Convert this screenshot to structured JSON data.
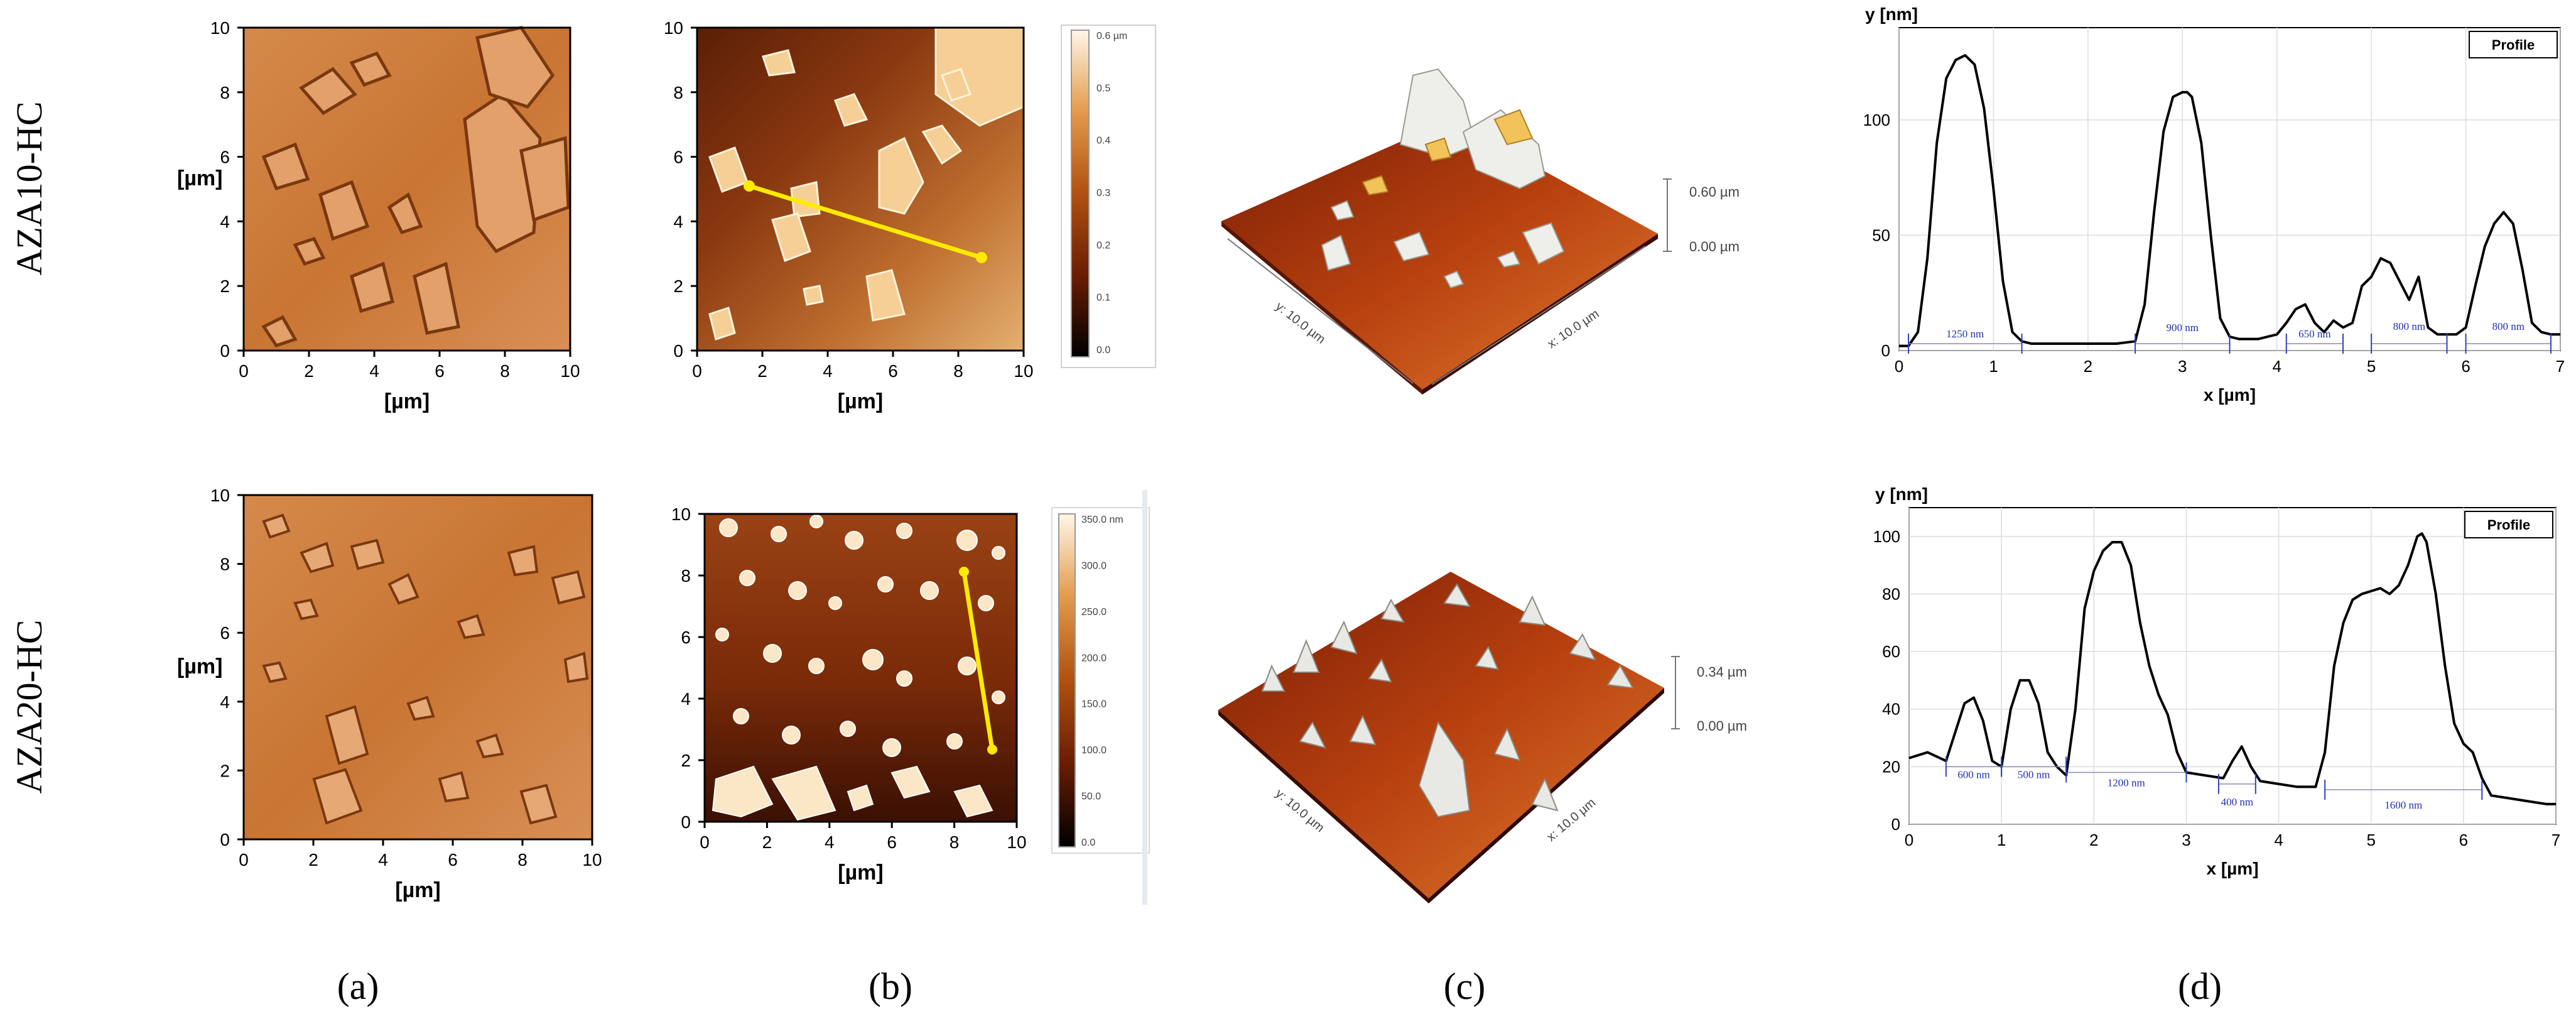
{
  "rows": [
    {
      "sample": "AZA10-HC"
    },
    {
      "sample": "AZA20-HC"
    }
  ],
  "panel_labels": [
    "(a)",
    "(b)",
    "(c)",
    "(d)"
  ],
  "axis_unit": "[µm]",
  "ticks_0_10": [
    "0",
    "2",
    "4",
    "6",
    "8",
    "10"
  ],
  "colorbar_row1": [
    "0.6 µm",
    "0.5",
    "0.4",
    "0.3",
    "0.2",
    "0.1",
    "0.0"
  ],
  "colorbar_row2": [
    "350.0 nm",
    "300.0",
    "250.0",
    "200.0",
    "150.0",
    "100.0",
    "50.0",
    "0.0"
  ],
  "view3d": [
    {
      "top": "0.60 µm",
      "bottom": "0.00 µm",
      "y_label": "y: 10.0 µm",
      "x_label": "x: 10.0 µm"
    },
    {
      "top": "0.34 µm",
      "bottom": "0.00 µm",
      "y_label": "y: 10.0 µm",
      "x_label": "x: 10.0 µm"
    }
  ],
  "chart_data": [
    {
      "type": "line",
      "xlabel": "x [µm]",
      "ylabel": "y [nm]",
      "legend": "Profile",
      "legend_position": "top-right",
      "xlim": [
        0,
        7
      ],
      "ylim": [
        0,
        140
      ],
      "xticks": [
        0,
        1,
        2,
        3,
        4,
        5,
        6,
        7
      ],
      "yticks": [
        0,
        50,
        100
      ],
      "grid": true,
      "series": [
        {
          "name": "Profile",
          "x": [
            0.0,
            0.1,
            0.2,
            0.3,
            0.4,
            0.5,
            0.6,
            0.7,
            0.8,
            0.9,
            1.0,
            1.1,
            1.2,
            1.3,
            1.4,
            1.5,
            1.8,
            2.0,
            2.3,
            2.5,
            2.6,
            2.7,
            2.8,
            2.9,
            3.0,
            3.05,
            3.1,
            3.2,
            3.3,
            3.4,
            3.5,
            3.6,
            3.8,
            4.0,
            4.1,
            4.2,
            4.3,
            4.4,
            4.5,
            4.6,
            4.7,
            4.8,
            4.9,
            5.0,
            5.1,
            5.2,
            5.3,
            5.4,
            5.5,
            5.6,
            5.7,
            5.8,
            5.9,
            6.0,
            6.1,
            6.2,
            6.3,
            6.4,
            6.5,
            6.6,
            6.7,
            6.8,
            6.9,
            7.0
          ],
          "y": [
            2,
            2,
            8,
            40,
            90,
            118,
            126,
            128,
            124,
            105,
            70,
            30,
            8,
            4,
            3,
            3,
            3,
            3,
            3,
            4,
            20,
            60,
            95,
            110,
            112,
            112,
            110,
            90,
            50,
            14,
            6,
            5,
            5,
            7,
            12,
            18,
            20,
            12,
            8,
            13,
            10,
            12,
            28,
            32,
            40,
            38,
            30,
            22,
            32,
            10,
            7,
            7,
            7,
            10,
            28,
            45,
            55,
            60,
            55,
            35,
            12,
            8,
            7,
            7
          ]
        }
      ],
      "annotations": [
        "1250 nm",
        "900 nm",
        "650 nm",
        "800 nm",
        "800 nm"
      ]
    },
    {
      "type": "line",
      "xlabel": "x [µm]",
      "ylabel": "y [nm]",
      "legend": "Profile",
      "legend_position": "top-right",
      "xlim": [
        0,
        7
      ],
      "ylim": [
        0,
        110
      ],
      "xticks": [
        0,
        1,
        2,
        3,
        4,
        5,
        6,
        7
      ],
      "yticks": [
        0,
        20,
        40,
        60,
        80,
        100
      ],
      "grid": true,
      "series": [
        {
          "name": "Profile",
          "x": [
            0.0,
            0.2,
            0.4,
            0.5,
            0.6,
            0.7,
            0.8,
            0.9,
            1.0,
            1.1,
            1.2,
            1.3,
            1.4,
            1.5,
            1.6,
            1.7,
            1.8,
            1.9,
            2.0,
            2.1,
            2.2,
            2.3,
            2.4,
            2.5,
            2.6,
            2.7,
            2.8,
            2.9,
            3.0,
            3.2,
            3.4,
            3.5,
            3.6,
            3.7,
            3.8,
            4.0,
            4.2,
            4.4,
            4.5,
            4.6,
            4.7,
            4.8,
            4.9,
            5.0,
            5.1,
            5.2,
            5.3,
            5.4,
            5.5,
            5.55,
            5.6,
            5.7,
            5.8,
            5.9,
            6.0,
            6.1,
            6.2,
            6.3,
            6.5,
            6.7,
            6.9,
            7.0
          ],
          "y": [
            23,
            25,
            22,
            32,
            42,
            44,
            36,
            22,
            20,
            40,
            50,
            50,
            42,
            25,
            20,
            17,
            40,
            75,
            88,
            95,
            98,
            98,
            90,
            70,
            55,
            45,
            38,
            25,
            18,
            17,
            16,
            22,
            27,
            20,
            15,
            14,
            13,
            13,
            25,
            55,
            70,
            78,
            80,
            81,
            82,
            80,
            83,
            90,
            100,
            101,
            98,
            80,
            55,
            35,
            28,
            25,
            16,
            10,
            9,
            8,
            7,
            7
          ]
        }
      ],
      "annotations": [
        "600 nm",
        "500 nm",
        "1200 nm",
        "400 nm",
        "1600 nm"
      ]
    }
  ]
}
